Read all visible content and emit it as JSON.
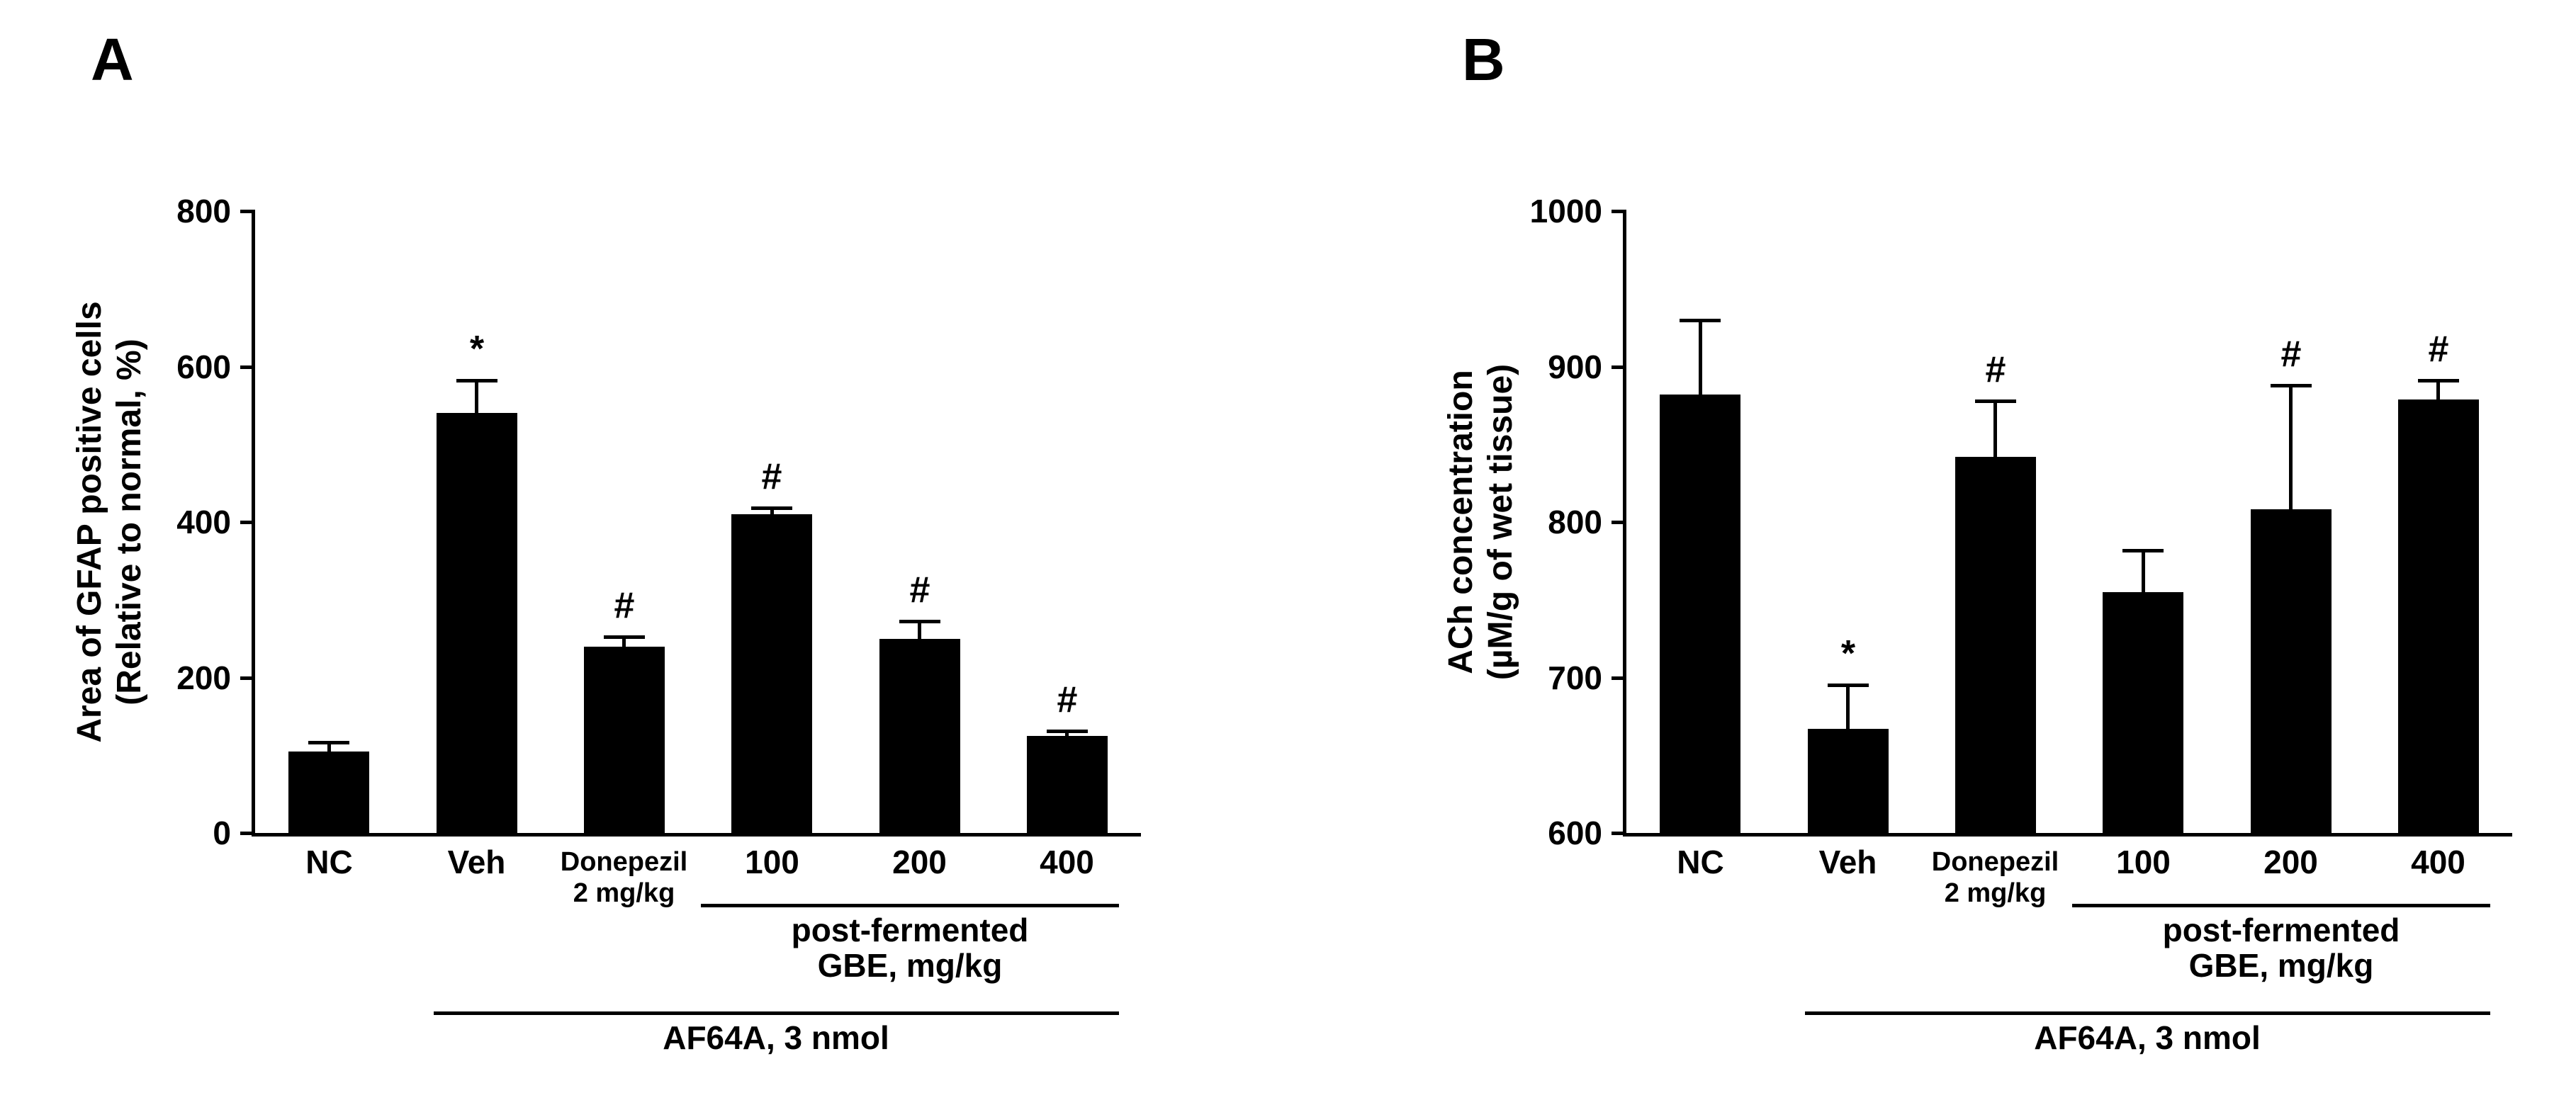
{
  "figure": {
    "background_color": "#ffffff",
    "bar_color": "#000000",
    "text_color": "#000000",
    "panel_labels": [
      "A",
      "B"
    ]
  },
  "chart_data": [
    {
      "type": "bar",
      "panel_label": "A",
      "ylabel_lines": [
        "Area of GFAP positive cells",
        "(Relative to normal, %)"
      ],
      "ylim": [
        0,
        800
      ],
      "yticks": [
        0,
        200,
        400,
        600,
        800
      ],
      "grid": false,
      "legend": "none",
      "categories": [
        "NC",
        "Veh",
        "Donepezil",
        "100",
        "200",
        "400"
      ],
      "category_sublabels": [
        "",
        "",
        "2 mg/kg",
        "",
        "",
        ""
      ],
      "values": [
        105,
        540,
        240,
        410,
        250,
        125
      ],
      "errors": [
        12,
        42,
        12,
        8,
        22,
        6
      ],
      "annotations": [
        "",
        "*",
        "#",
        "#",
        "#",
        "#"
      ],
      "group_brackets": [
        {
          "label_lines": [
            "post-fermented",
            "GBE, mg/kg"
          ],
          "start_index": 3,
          "end_index": 5,
          "pad_left_frac": 0.48,
          "pad_right_frac": 0.35
        },
        {
          "label_lines": [
            "AF64A, 3 nmol"
          ],
          "start_index": 1,
          "end_index": 5,
          "pad_left_frac": 0.29,
          "pad_right_frac": 0.35
        }
      ]
    },
    {
      "type": "bar",
      "panel_label": "B",
      "ylabel_lines": [
        "ACh concentration",
        "(µM/g of wet tissue)"
      ],
      "ylim": [
        600,
        1000
      ],
      "yticks": [
        600,
        700,
        800,
        900,
        1000
      ],
      "grid": false,
      "legend": "none",
      "categories": [
        "NC",
        "Veh",
        "Donepezil",
        "100",
        "200",
        "400"
      ],
      "category_sublabels": [
        "",
        "",
        "2 mg/kg",
        "",
        "",
        ""
      ],
      "values": [
        882,
        667,
        842,
        755,
        808,
        879
      ],
      "errors": [
        48,
        28,
        36,
        27,
        80,
        12
      ],
      "annotations": [
        "",
        "*",
        "#",
        "",
        "#",
        "#"
      ],
      "group_brackets": [
        {
          "label_lines": [
            "post-fermented",
            "GBE, mg/kg"
          ],
          "start_index": 3,
          "end_index": 5,
          "pad_left_frac": 0.48,
          "pad_right_frac": 0.35
        },
        {
          "label_lines": [
            "AF64A, 3 nmol"
          ],
          "start_index": 1,
          "end_index": 5,
          "pad_left_frac": 0.29,
          "pad_right_frac": 0.35
        }
      ]
    }
  ]
}
